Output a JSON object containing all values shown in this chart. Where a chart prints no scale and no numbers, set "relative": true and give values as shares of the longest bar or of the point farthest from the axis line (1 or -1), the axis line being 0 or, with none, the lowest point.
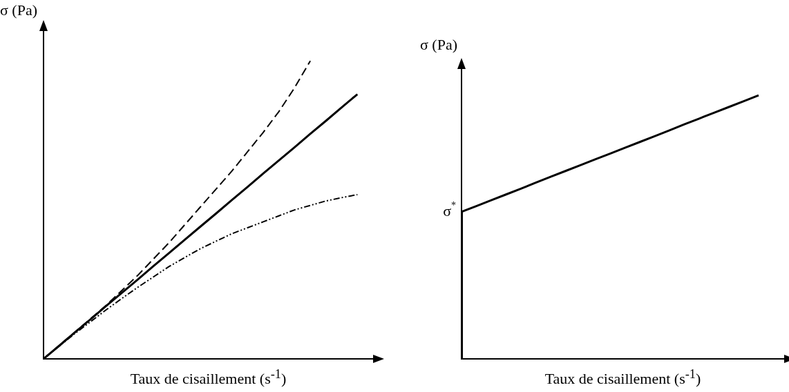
{
  "chart_data": [
    {
      "type": "line",
      "relative": true,
      "xlabel": "Taux de cisaillement (s$^{-1}$)",
      "ylabel": "σ (Pa)",
      "categories": [
        null,
        null,
        null,
        null,
        null,
        null,
        null,
        null,
        null,
        null,
        null,
        null,
        null,
        null,
        null,
        null,
        null,
        null,
        null,
        null,
        null
      ],
      "tick_labels": false,
      "marker": "none",
      "series": [
        {
          "color": "#000000",
          "line_style": "dashed",
          "values": [
            0,
            0.045,
            0.09,
            0.135,
            0.18,
            0.23,
            0.28,
            0.335,
            0.39,
            0.45,
            0.51,
            0.57,
            0.63,
            0.695,
            0.76,
            0.83,
            0.91,
            1,
            null,
            null,
            null
          ]
        },
        {
          "color": "#000000",
          "line_style": "solid",
          "values": [
            0,
            0.044,
            0.089,
            0.133,
            0.178,
            0.222,
            0.266,
            0.311,
            0.355,
            0.4,
            0.444,
            0.488,
            0.533,
            0.577,
            0.622,
            0.666,
            0.71,
            0.755,
            0.799,
            0.844,
            0.888
          ]
        },
        {
          "color": "#000000",
          "line_style": "dotted",
          "values": [
            0,
            0.043,
            0.085,
            0.125,
            0.165,
            0.203,
            0.24,
            0.275,
            0.31,
            0.34,
            0.37,
            0.395,
            0.42,
            0.44,
            0.46,
            0.48,
            0.5,
            0.515,
            0.53,
            0.541,
            0.551
          ]
        }
      ]
    },
    {
      "type": "line",
      "relative": true,
      "xlabel": "Taux de cisaillement (s$^{-1}$)",
      "ylabel": "σ (Pa)",
      "categories": [
        null,
        null,
        null,
        null,
        null,
        null,
        null,
        null,
        null,
        null,
        null,
        null,
        null,
        null,
        null,
        null,
        null,
        null,
        null,
        null,
        null
      ],
      "tick_labels": false,
      "marker": "none",
      "annotations": [
        "σ$^{*}$"
      ],
      "series": [
        {
          "color": "#000000",
          "line_style": "solid",
          "values": [
            0.558,
            0.58,
            0.602,
            0.624,
            0.646,
            0.669,
            0.691,
            0.713,
            0.735,
            0.757,
            0.779,
            0.801,
            0.823,
            0.845,
            0.867,
            0.89,
            0.912,
            0.934,
            0.956,
            0.978,
            1
          ]
        }
      ]
    }
  ]
}
